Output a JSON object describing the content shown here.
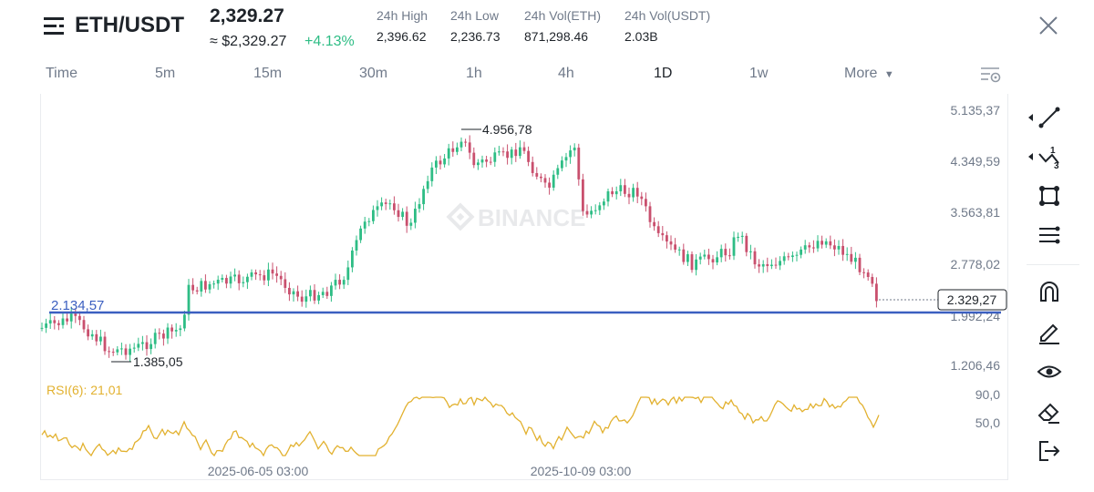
{
  "header": {
    "symbol": "ETH/USDT",
    "price": "2,329.27",
    "usd_price": "≈ $2,329.27",
    "change": "+4.13%"
  },
  "stats": [
    {
      "label": "24h High",
      "value": "2,396.62"
    },
    {
      "label": "24h Low",
      "value": "2,236.73"
    },
    {
      "label": "24h Vol(ETH)",
      "value": "871,298.46"
    },
    {
      "label": "24h Vol(USDT)",
      "value": "2.03B"
    }
  ],
  "tabs": [
    "Time",
    "5m",
    "15m",
    "30m",
    "1h",
    "4h",
    "1D",
    "1w",
    "More"
  ],
  "active_tab": "1D",
  "chart": {
    "watermark": "BINANCE",
    "price_axis": [
      "5.135,37",
      "4.349,59",
      "3.563,81",
      "2.778,02",
      "1.992,24",
      "1.206,46"
    ],
    "current_price_tag": "2.329,27",
    "horizontal_line_label": "2.134,57",
    "high_marker": "4.956,78",
    "low_marker": "1.385,05",
    "rsi_label": "RSI(6): 21,01",
    "rsi_axis": [
      "90,0",
      "50,0"
    ],
    "date_labels": [
      "2025-06-05 03:00",
      "2025-10-09 03:00"
    ]
  },
  "colors": {
    "up": "#2ebd85",
    "down": "#c9506e",
    "line": "#3b5fc0",
    "rsi": "#e2b12f"
  },
  "toolbar_icons": [
    "trend-line-icon",
    "multi-line-icon",
    "rectangle-icon",
    "fib-lines-icon",
    "magnet-icon",
    "pencil-icon",
    "eye-icon",
    "eraser-icon",
    "exit-icon"
  ]
}
